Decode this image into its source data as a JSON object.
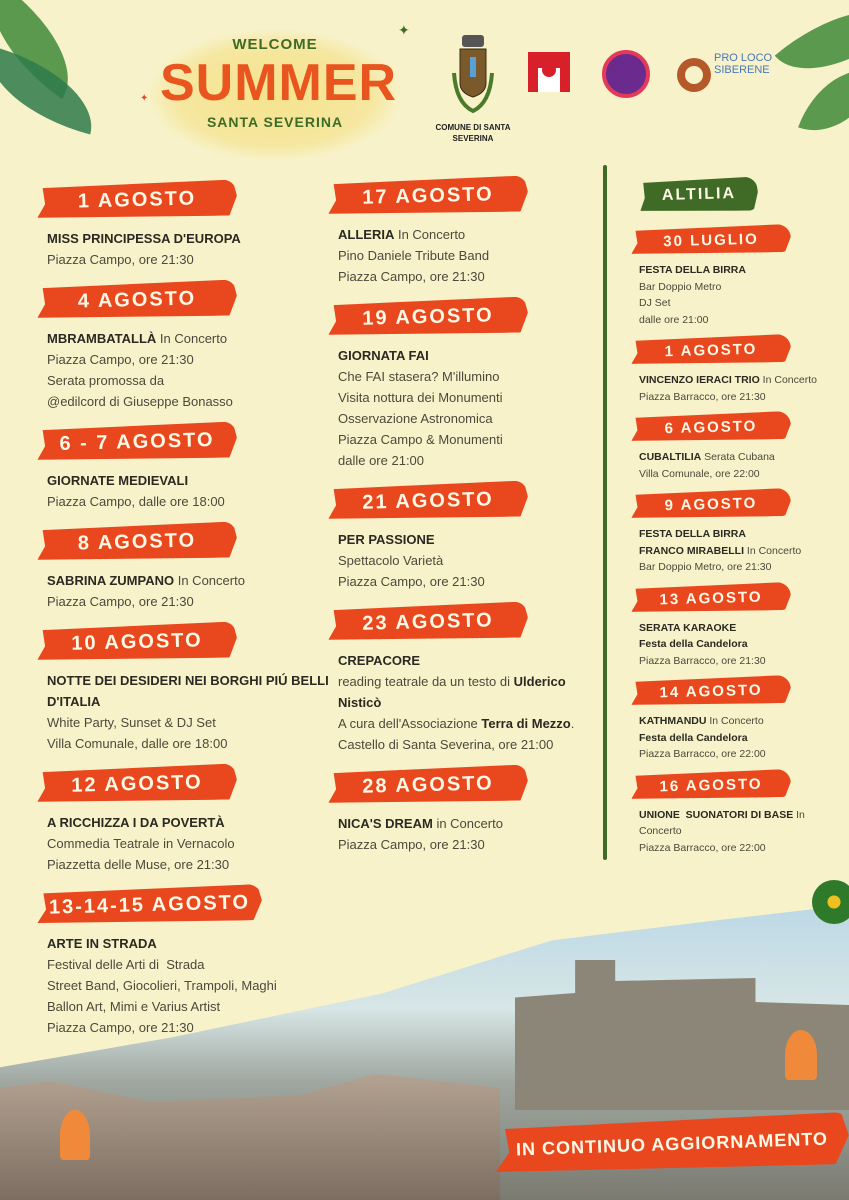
{
  "header": {
    "welcome": "WELCOME",
    "title": "SUMMER",
    "subtitle": "SANTA SEVERINA",
    "logos": [
      {
        "name": "comune-crest",
        "caption": "COMUNE DI SANTA SEVERINA"
      },
      {
        "name": "borghi-piu-belli-italia",
        "caption": "I Borghi più belli d'Italia"
      },
      {
        "name": "music-logo",
        "caption": ""
      },
      {
        "name": "pro-loco-siberene",
        "caption": "PRO LOCO SIBERENE"
      }
    ]
  },
  "colors": {
    "orange": "#e9481f",
    "green": "#3f6b26",
    "background": "#f7f2c9"
  },
  "left_column": [
    {
      "date": "1 AGOSTO",
      "lines": [
        [
          {
            "b": "MISS PRINCIPESSA D'EUROPA"
          }
        ],
        [
          {
            "t": "Piazza Campo, ore 21:30"
          }
        ]
      ]
    },
    {
      "date": "4 AGOSTO",
      "lines": [
        [
          {
            "b": "MBRAMBATALLÀ"
          },
          {
            "t": " In Concerto"
          }
        ],
        [
          {
            "t": "Piazza Campo, ore 21:30"
          }
        ],
        [
          {
            "t": "Serata promossa da"
          }
        ],
        [
          {
            "t": "@edilcord di Giuseppe Bonasso"
          }
        ]
      ]
    },
    {
      "date": "6 - 7 AGOSTO",
      "lines": [
        [
          {
            "b": "GIORNATE MEDIEVALI"
          }
        ],
        [
          {
            "t": "Piazza Campo, dalle ore 18:00"
          }
        ]
      ]
    },
    {
      "date": "8 AGOSTO",
      "lines": [
        [
          {
            "b": "SABRINA ZUMPANO"
          },
          {
            "t": " In Concerto"
          }
        ],
        [
          {
            "t": "Piazza Campo, ore 21:30"
          }
        ]
      ]
    },
    {
      "date": "10 AGOSTO",
      "lines": [
        [
          {
            "b": "NOTTE DEI DESIDERI NEI BORGHI PIÚ BELLI D'ITALIA"
          }
        ],
        [
          {
            "t": "White Party, Sunset & DJ Set"
          }
        ],
        [
          {
            "t": "Villa Comunale, dalle ore 18:00"
          }
        ]
      ]
    },
    {
      "date": "12 AGOSTO",
      "lines": [
        [
          {
            "b": "A RICCHIZZA I DA POVERTÀ"
          }
        ],
        [
          {
            "t": "Commedia Teatrale in Vernacolo"
          }
        ],
        [
          {
            "t": "Piazzetta delle Muse, ore 21:30"
          }
        ]
      ]
    },
    {
      "date": "13-14-15 AGOSTO",
      "lines": [
        [
          {
            "b": "ARTE IN STRADA"
          }
        ],
        [
          {
            "t": "Festival delle Arti di  Strada"
          }
        ],
        [
          {
            "t": "Street Band, Giocolieri, Trampoli, Maghi"
          }
        ],
        [
          {
            "t": "Ballon Art, Mimi e Varius Artist"
          }
        ],
        [
          {
            "t": "Piazza Campo, ore 21:30"
          }
        ]
      ]
    }
  ],
  "middle_column": [
    {
      "date": "17 AGOSTO",
      "lines": [
        [
          {
            "b": "ALLERIA"
          },
          {
            "t": " In Concerto"
          }
        ],
        [
          {
            "t": "Pino Daniele Tribute Band"
          }
        ],
        [
          {
            "t": "Piazza Campo, ore 21:30"
          }
        ]
      ]
    },
    {
      "date": "19 AGOSTO",
      "lines": [
        [
          {
            "b": "GIORNATA FAI"
          }
        ],
        [
          {
            "t": "Che FAI stasera? M'illumino"
          }
        ],
        [
          {
            "t": "Visita nottura dei Monumenti"
          }
        ],
        [
          {
            "t": "Osservazione Astronomica"
          }
        ],
        [
          {
            "t": "Piazza Campo & Monumenti"
          }
        ],
        [
          {
            "t": "dalle ore 21:00"
          }
        ]
      ]
    },
    {
      "date": "21 AGOSTO",
      "lines": [
        [
          {
            "b": "PER PASSIONE"
          }
        ],
        [
          {
            "t": "Spettacolo Varietà"
          }
        ],
        [
          {
            "t": "Piazza Campo, ore 21:30"
          }
        ]
      ]
    },
    {
      "date": "23 AGOSTO",
      "lines": [
        [
          {
            "b": "CREPACORE"
          }
        ],
        [
          {
            "t": "reading teatrale da un testo di "
          },
          {
            "b": "Ulderico Nisticò"
          }
        ],
        [
          {
            "t": "A cura dell'Associazione "
          },
          {
            "b": "Terra di Mezzo"
          },
          {
            "t": "."
          }
        ],
        [
          {
            "t": "Castello di Santa Severina, ore 21:00"
          }
        ]
      ]
    },
    {
      "date": "28 AGOSTO",
      "lines": [
        [
          {
            "b": "NICA'S DREAM"
          },
          {
            "t": " in Concerto"
          }
        ],
        [
          {
            "t": "Piazza Campo, ore 21:30"
          }
        ]
      ]
    }
  ],
  "right_column": {
    "title": "ALTILIA",
    "events": [
      {
        "date": "30 LUGLIO",
        "lines": [
          [
            {
              "b": "FESTA DELLA BIRRA"
            }
          ],
          [
            {
              "t": "Bar Doppio Metro"
            }
          ],
          [
            {
              "t": "DJ Set"
            }
          ],
          [
            {
              "t": "dalle ore 21:00"
            }
          ]
        ]
      },
      {
        "date": "1 AGOSTO",
        "lines": [
          [
            {
              "b": "VINCENZO IERACI TRIO"
            },
            {
              "t": " In Concerto"
            }
          ],
          [
            {
              "t": "Piazza Barracco, ore 21:30"
            }
          ]
        ]
      },
      {
        "date": "6 AGOSTO",
        "lines": [
          [
            {
              "b": "CUBALTILIA"
            },
            {
              "t": " Serata Cubana"
            }
          ],
          [
            {
              "t": "Villa Comunale, ore 22:00"
            }
          ]
        ]
      },
      {
        "date": "9 AGOSTO",
        "lines": [
          [
            {
              "b": "FESTA DELLA BIRRA"
            }
          ],
          [
            {
              "b": "FRANCO MIRABELLI"
            },
            {
              "t": " In Concerto"
            }
          ],
          [
            {
              "t": "Bar Doppio Metro, ore 21:30"
            }
          ]
        ]
      },
      {
        "date": "13 AGOSTO",
        "lines": [
          [
            {
              "b": "SERATA KARAOKE"
            }
          ],
          [
            {
              "b": "Festa della Candelora"
            }
          ],
          [
            {
              "t": "Piazza Barracco, ore 21:30"
            }
          ]
        ]
      },
      {
        "date": "14 AGOSTO",
        "lines": [
          [
            {
              "b": "KATHMANDU"
            },
            {
              "t": " In Concerto"
            }
          ],
          [
            {
              "b": "Festa della Candelora"
            }
          ],
          [
            {
              "t": "Piazza Barracco, ore 22:00"
            }
          ]
        ]
      },
      {
        "date": "16 AGOSTO",
        "lines": [
          [
            {
              "b": "UNIONE  SUONATORI DI BASE"
            },
            {
              "t": " In Concerto"
            }
          ],
          [
            {
              "t": "Piazza Barracco, ore 22:00"
            }
          ]
        ]
      }
    ]
  },
  "footer": {
    "banner": "IN CONTINUO AGGIORNAMENTO"
  }
}
